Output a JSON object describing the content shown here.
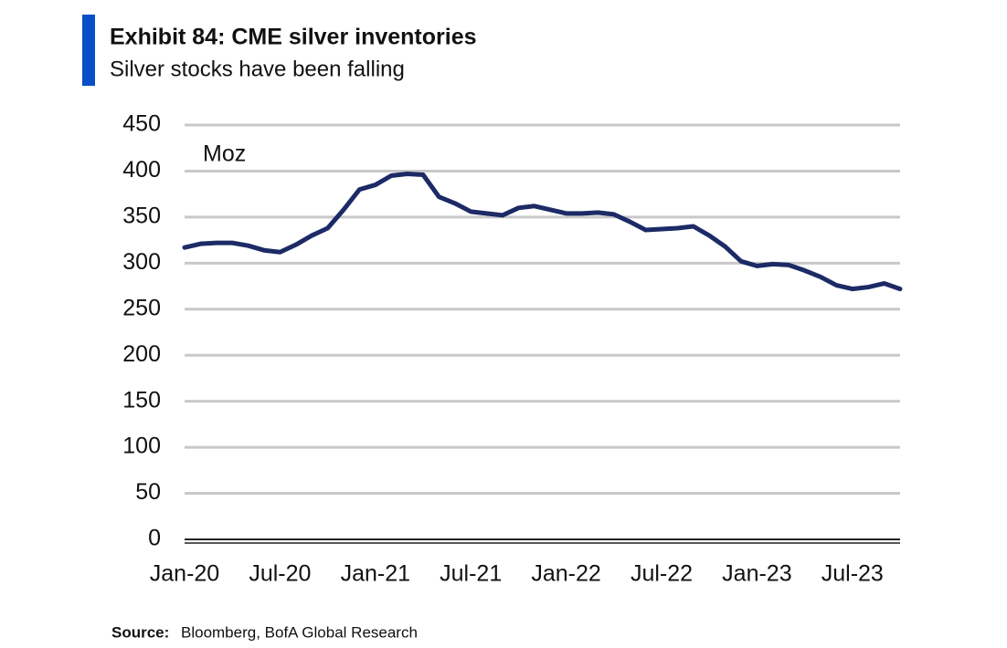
{
  "chart_data": {
    "type": "line",
    "title": "Exhibit 84: CME silver inventories",
    "subtitle": "Silver stocks have been falling",
    "annotation": "Moz",
    "source": {
      "label": "Source:",
      "text": "Bloomberg, BofA Global Research"
    },
    "x": [
      "2020-01",
      "2020-02",
      "2020-03",
      "2020-04",
      "2020-05",
      "2020-06",
      "2020-07",
      "2020-08",
      "2020-09",
      "2020-10",
      "2020-11",
      "2020-12",
      "2021-01",
      "2021-02",
      "2021-03",
      "2021-04",
      "2021-05",
      "2021-06",
      "2021-07",
      "2021-08",
      "2021-09",
      "2021-10",
      "2021-11",
      "2021-12",
      "2022-01",
      "2022-02",
      "2022-03",
      "2022-04",
      "2022-05",
      "2022-06",
      "2022-07",
      "2022-08",
      "2022-09",
      "2022-10",
      "2022-11",
      "2022-12",
      "2023-01",
      "2023-02",
      "2023-03",
      "2023-04",
      "2023-05",
      "2023-06",
      "2023-07",
      "2023-08",
      "2023-09",
      "2023-10"
    ],
    "series": [
      {
        "name": "CME silver inventories",
        "color": "#1c2a66",
        "values": [
          317,
          321,
          322,
          322,
          319,
          314,
          312,
          320,
          330,
          338,
          358,
          380,
          385,
          395,
          397,
          396,
          372,
          365,
          356,
          354,
          352,
          360,
          362,
          358,
          354,
          354,
          355,
          353,
          345,
          336,
          337,
          338,
          340,
          330,
          318,
          302,
          297,
          299,
          298,
          292,
          285,
          276,
          272,
          274,
          278,
          272
        ]
      }
    ],
    "xlim": [
      "2020-01",
      "2023-10"
    ],
    "xticks": [
      {
        "value": "2020-01",
        "label": "Jan-20"
      },
      {
        "value": "2020-07",
        "label": "Jul-20"
      },
      {
        "value": "2021-01",
        "label": "Jan-21"
      },
      {
        "value": "2021-07",
        "label": "Jul-21"
      },
      {
        "value": "2022-01",
        "label": "Jan-22"
      },
      {
        "value": "2022-07",
        "label": "Jul-22"
      },
      {
        "value": "2023-01",
        "label": "Jan-23"
      },
      {
        "value": "2023-07",
        "label": "Jul-23"
      }
    ],
    "ylim": [
      0,
      450
    ],
    "yticks": [
      0,
      50,
      100,
      150,
      200,
      250,
      300,
      350,
      400,
      450
    ],
    "grid": true
  }
}
